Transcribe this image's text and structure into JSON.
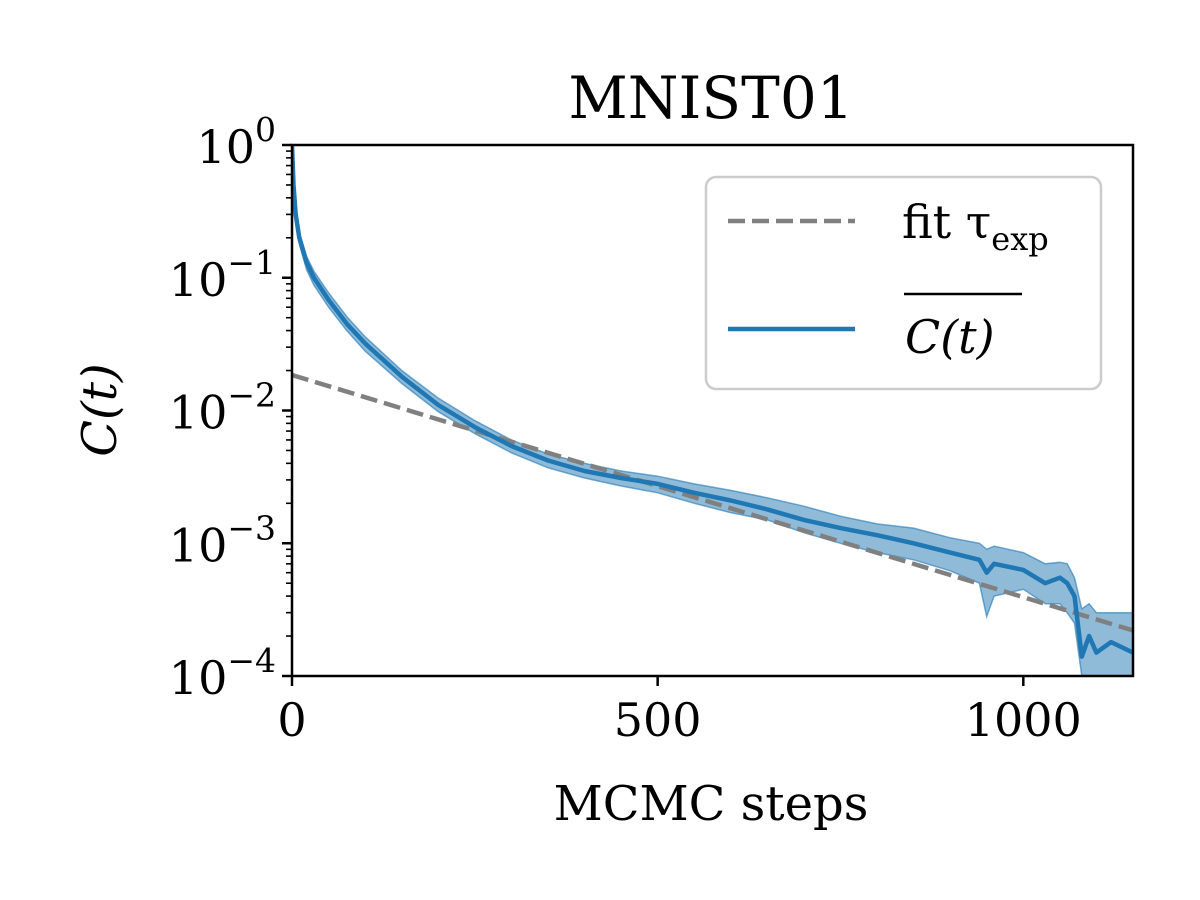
{
  "chart_data": {
    "type": "line",
    "title": "MNIST01",
    "xlabel": "MCMC steps",
    "ylabel": "C(t)",
    "xlim": [
      0,
      1150
    ],
    "ylim": [
      0.0001,
      1
    ],
    "yscale": "log",
    "x_ticks": [
      {
        "value": 0,
        "label": "0"
      },
      {
        "value": 500,
        "label": "500"
      },
      {
        "value": 1000,
        "label": "1000"
      }
    ],
    "y_ticks": [
      {
        "value": 1,
        "base": "10",
        "exp": "0"
      },
      {
        "value": 0.1,
        "base": "10",
        "exp": "−1"
      },
      {
        "value": 0.01,
        "base": "10",
        "exp": "−2"
      },
      {
        "value": 0.001,
        "base": "10",
        "exp": "−3"
      },
      {
        "value": 0.0001,
        "base": "10",
        "exp": "−4"
      }
    ],
    "legend": {
      "location": "top-right",
      "entries": [
        {
          "label": "fit τ",
          "sub": "exp",
          "style": "dashed",
          "color": "#808080"
        },
        {
          "label": "C(t)",
          "overline": true,
          "style": "solid",
          "color": "#1f77b4"
        }
      ]
    },
    "series": [
      {
        "name": "fit τexp",
        "style": "dashed",
        "color": "#808080",
        "x": [
          0,
          1150
        ],
        "y": [
          0.0185,
          0.00022
        ]
      },
      {
        "name": "C(t) mean",
        "style": "solid",
        "color": "#1f77b4",
        "band_color": "#1f77b4",
        "x": [
          0,
          2,
          5,
          10,
          20,
          30,
          50,
          75,
          100,
          150,
          200,
          250,
          300,
          350,
          400,
          450,
          500,
          550,
          600,
          650,
          700,
          750,
          800,
          850,
          900,
          940,
          950,
          960,
          1000,
          1030,
          1050,
          1060,
          1070,
          1080,
          1090,
          1100,
          1120,
          1150
        ],
        "y": [
          1.0,
          0.5,
          0.3,
          0.2,
          0.13,
          0.1,
          0.068,
          0.045,
          0.032,
          0.018,
          0.011,
          0.0075,
          0.0054,
          0.0042,
          0.0035,
          0.0031,
          0.0028,
          0.0024,
          0.0021,
          0.0018,
          0.0015,
          0.0013,
          0.00115,
          0.001,
          0.00085,
          0.00075,
          0.0006,
          0.0007,
          0.00063,
          0.0005,
          0.00055,
          0.0005,
          0.0004,
          0.00014,
          0.0002,
          0.00015,
          0.00018,
          0.00015
        ],
        "lower": [
          1.0,
          0.45,
          0.27,
          0.18,
          0.115,
          0.088,
          0.06,
          0.04,
          0.028,
          0.016,
          0.0098,
          0.0067,
          0.0048,
          0.0037,
          0.0031,
          0.0027,
          0.0024,
          0.002,
          0.0017,
          0.0015,
          0.0012,
          0.001,
          0.00085,
          0.00075,
          0.00062,
          0.0005,
          0.00028,
          0.0004,
          0.00045,
          0.00035,
          0.00035,
          0.0003,
          0.00025,
          0.0001,
          0.0001,
          0.0001,
          0.0001,
          0.0001
        ],
        "upper": [
          1.0,
          0.55,
          0.33,
          0.22,
          0.145,
          0.112,
          0.077,
          0.051,
          0.036,
          0.02,
          0.0124,
          0.0084,
          0.006,
          0.0047,
          0.004,
          0.0035,
          0.0032,
          0.0028,
          0.0025,
          0.0022,
          0.0019,
          0.0016,
          0.0014,
          0.0013,
          0.0011,
          0.001,
          0.0009,
          0.00095,
          0.00085,
          0.0007,
          0.00072,
          0.0007,
          0.00055,
          0.00032,
          0.00035,
          0.0003,
          0.0003,
          0.0003
        ]
      }
    ]
  }
}
